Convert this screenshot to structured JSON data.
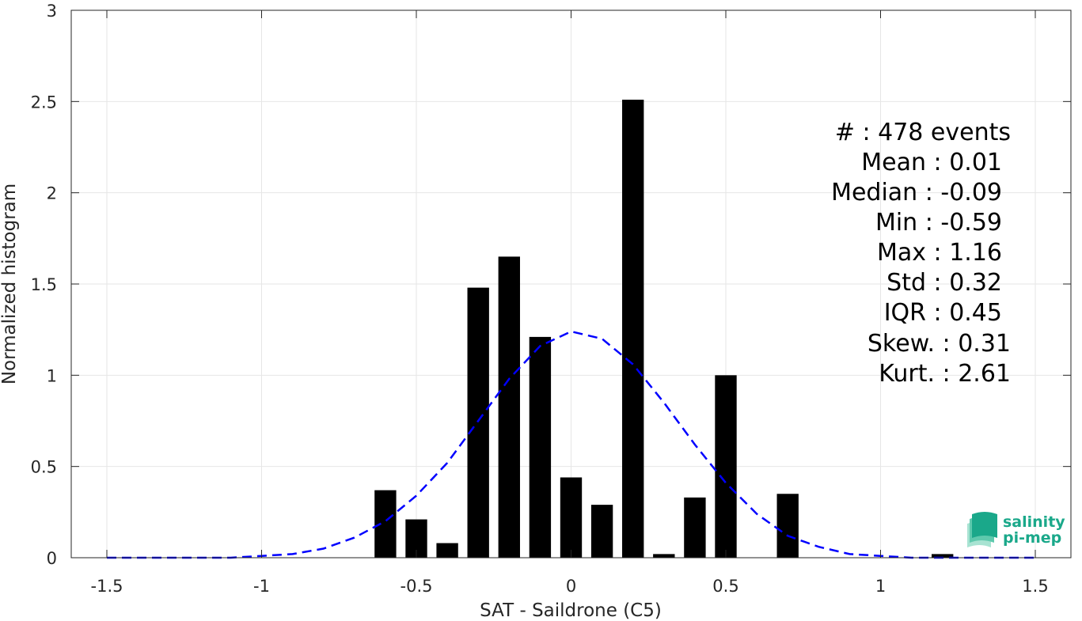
{
  "chart_data": {
    "type": "bar",
    "xlabel": "SAT - Saildrone (C5)",
    "ylabel": "Normalized histogram",
    "xlim": [
      -1.5,
      1.5
    ],
    "ylim": [
      0,
      3
    ],
    "grid": true,
    "x_ticks": [
      -1.5,
      -1,
      -0.5,
      0,
      0.5,
      1,
      1.5
    ],
    "x_tick_labels": [
      "-1.5",
      "-1",
      "-0.5",
      "0",
      "0.5",
      "1",
      "1.5"
    ],
    "y_ticks": [
      0,
      0.5,
      1,
      1.5,
      2,
      2.5,
      3
    ],
    "y_tick_labels": [
      "0",
      "0.5",
      "1",
      "1.5",
      "2",
      "2.5",
      "3"
    ],
    "bar_width": 0.07,
    "bar_color": "#000000",
    "bars": [
      {
        "x": -0.6,
        "y": 0.37
      },
      {
        "x": -0.5,
        "y": 0.21
      },
      {
        "x": -0.4,
        "y": 0.08
      },
      {
        "x": -0.3,
        "y": 1.48
      },
      {
        "x": -0.2,
        "y": 1.65
      },
      {
        "x": -0.1,
        "y": 1.21
      },
      {
        "x": 0.0,
        "y": 0.44
      },
      {
        "x": 0.1,
        "y": 0.29
      },
      {
        "x": 0.2,
        "y": 2.51
      },
      {
        "x": 0.3,
        "y": 0.02
      },
      {
        "x": 0.4,
        "y": 0.33
      },
      {
        "x": 0.5,
        "y": 1.0
      },
      {
        "x": 0.7,
        "y": 0.35
      },
      {
        "x": 1.2,
        "y": 0.02
      }
    ],
    "fit_curve": {
      "style": "dashed",
      "color": "#0000ff",
      "x": [
        -1.5,
        -1.4,
        -1.3,
        -1.2,
        -1.1,
        -1.0,
        -0.9,
        -0.8,
        -0.7,
        -0.6,
        -0.5,
        -0.4,
        -0.3,
        -0.2,
        -0.1,
        0.0,
        0.1,
        0.2,
        0.3,
        0.4,
        0.5,
        0.6,
        0.7,
        0.8,
        0.9,
        1.0,
        1.1,
        1.2,
        1.3,
        1.4,
        1.5
      ],
      "y": [
        0.0,
        0.0,
        0.0,
        0.0,
        0.0,
        0.01,
        0.02,
        0.05,
        0.11,
        0.2,
        0.34,
        0.52,
        0.75,
        0.98,
        1.16,
        1.24,
        1.2,
        1.06,
        0.85,
        0.62,
        0.41,
        0.24,
        0.12,
        0.06,
        0.02,
        0.01,
        0.0,
        0.0,
        0.0,
        0.0,
        0.0
      ]
    },
    "stats": [
      "#  : 478 events",
      "Mean : 0.01",
      "Median : -0.09",
      "Min : -0.59",
      "Max : 1.16",
      "Std : 0.32",
      "IQR : 0.45",
      "Skew. : 0.31",
      "Kurt. : 2.61"
    ]
  },
  "logo": {
    "line1": "salinity",
    "line2": "pi-mep",
    "color": "#1aa88a"
  }
}
